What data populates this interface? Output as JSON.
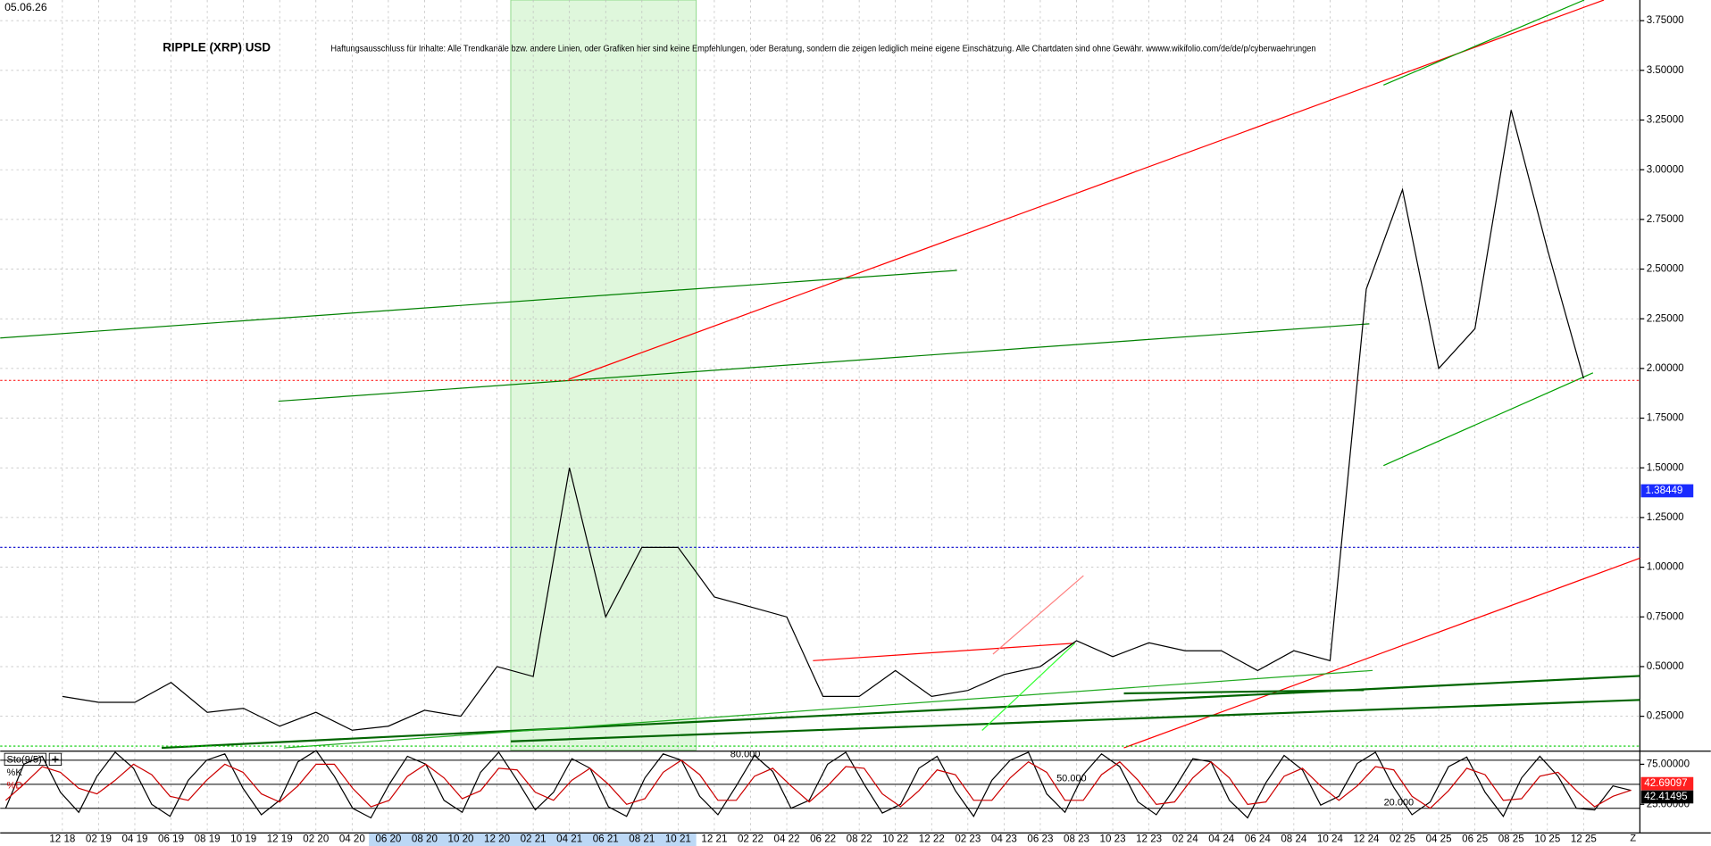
{
  "chart_data": [
    {
      "type": "line",
      "title": "RIPPLE (XRP) USD",
      "subtitle": "Haftungsausschluss für Inhalte: Alle Trendkanäle bzw. andere Linien, oder Grafiken hier sind keine Empfehlungen, oder Beratung, sondern die zeigen lediglich meine eigene Einschätzung. Alle Chartdaten sind ohne Gewähr.  wwww.wikifolio.com/de/de/p/cyberwaehrungen",
      "date": "05.06.26",
      "end_label": "Z",
      "categories": [
        "12 18",
        "02 19",
        "04 19",
        "06 19",
        "08 19",
        "10 19",
        "12 19",
        "02 20",
        "04 20",
        "06 20",
        "08 20",
        "10 20",
        "12 20",
        "02 21",
        "04 21",
        "06 21",
        "08 21",
        "10 21",
        "12 21",
        "02 22",
        "04 22",
        "06 22",
        "08 22",
        "10 22",
        "12 22",
        "02 23",
        "04 23",
        "06 23",
        "08 23",
        "10 23",
        "12 23",
        "02 24",
        "04 24",
        "06 24",
        "08 24",
        "10 24",
        "12 24",
        "02 25",
        "04 25",
        "06 25",
        "08 25",
        "10 25",
        "12 25"
      ],
      "values": [
        0.35,
        0.32,
        0.32,
        0.42,
        0.27,
        0.29,
        0.2,
        0.27,
        0.18,
        0.2,
        0.28,
        0.25,
        0.5,
        0.45,
        1.5,
        0.75,
        1.1,
        1.1,
        0.85,
        0.8,
        0.75,
        0.35,
        0.35,
        0.48,
        0.35,
        0.38,
        0.46,
        0.5,
        0.63,
        0.55,
        0.62,
        0.58,
        0.58,
        0.48,
        0.58,
        0.53,
        2.4,
        2.9,
        2.0,
        2.2,
        3.3,
        2.6,
        1.95
      ],
      "color": "#000000",
      "last_value": 1.38449,
      "ylim": [
        0.08,
        3.854
      ],
      "yticks": [
        {
          "value": 0.25,
          "label": "0.25000"
        },
        {
          "value": 0.5,
          "label": "0.50000"
        },
        {
          "value": 0.75,
          "label": "0.75000"
        },
        {
          "value": 1,
          "label": "1.00000"
        },
        {
          "value": 1.25,
          "label": "1.25000"
        },
        {
          "value": 1.5,
          "label": "1.50000"
        },
        {
          "value": 1.75,
          "label": "1.75000"
        },
        {
          "value": 2,
          "label": "2.00000"
        },
        {
          "value": 2.25,
          "label": "2.25000"
        },
        {
          "value": 2.5,
          "label": "2.50000"
        },
        {
          "value": 2.75,
          "label": "2.75000"
        },
        {
          "value": 3,
          "label": "3.00000"
        },
        {
          "value": 3.25,
          "label": "3.25000"
        },
        {
          "value": 3.5,
          "label": "3.50000"
        },
        {
          "value": 3.75,
          "label": "3.75000"
        }
      ],
      "levels": [
        {
          "value": 1.94,
          "color": "#ff0000"
        },
        {
          "value": 1.1,
          "color": "#0000cc"
        },
        {
          "value": 0.1,
          "color": "#00cc00"
        }
      ],
      "grid": true
    },
    {
      "type": "line",
      "title": "Sto(9/5)",
      "series": [
        {
          "name": "%K",
          "color": "#000000",
          "values": [
            20,
            75,
            85,
            40,
            15,
            60,
            90,
            70,
            25,
            10,
            55,
            80,
            88,
            45,
            12,
            30,
            78,
            92,
            60,
            20,
            8,
            50,
            85,
            75,
            30,
            15,
            65,
            90,
            55,
            18,
            40,
            82,
            70,
            22,
            10,
            58,
            88,
            80,
            35,
            12,
            48,
            86,
            66,
            20,
            30,
            75,
            90,
            50,
            14,
            25,
            70,
            85,
            42,
            10,
            55,
            80,
            90,
            38,
            15,
            62,
            88,
            72,
            28,
            12,
            45,
            82,
            78,
            30,
            8,
            52,
            86,
            68,
            24,
            35,
            76,
            90,
            46,
            12,
            28,
            72,
            84,
            40,
            10,
            58,
            85,
            60,
            20,
            18,
            48,
            42.41495
          ]
        },
        {
          "name": "%D",
          "color": "#cc0000",
          "values": [
            30,
            50,
            72,
            65,
            45,
            38,
            55,
            75,
            62,
            35,
            30,
            55,
            75,
            65,
            38,
            28,
            48,
            75,
            75,
            45,
            22,
            30,
            60,
            75,
            58,
            32,
            42,
            70,
            68,
            40,
            30,
            55,
            70,
            50,
            25,
            32,
            65,
            80,
            62,
            30,
            30,
            60,
            70,
            48,
            28,
            48,
            72,
            70,
            38,
            22,
            42,
            68,
            62,
            30,
            30,
            58,
            78,
            65,
            30,
            30,
            62,
            78,
            55,
            25,
            28,
            58,
            78,
            58,
            25,
            28,
            60,
            70,
            48,
            30,
            48,
            72,
            68,
            35,
            20,
            42,
            70,
            62,
            30,
            32,
            60,
            65,
            42,
            22,
            35,
            42.69097
          ]
        }
      ],
      "ylim": [
        -8,
        90
      ],
      "yticks": [
        {
          "value": 75,
          "label": "75.00000"
        },
        {
          "value": 25,
          "label": "25.00000"
        }
      ],
      "levels": [
        {
          "value": 80,
          "label": "80.000"
        },
        {
          "value": 50,
          "label": "50.000"
        },
        {
          "value": 20,
          "label": "20.000"
        }
      ]
    }
  ]
}
